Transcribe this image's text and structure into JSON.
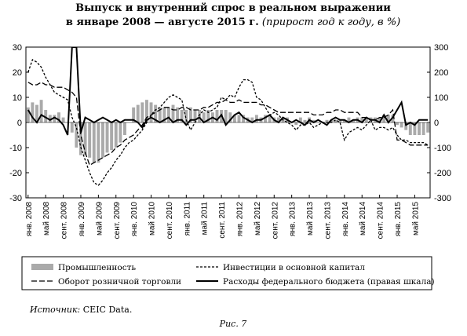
{
  "chart_data": {
    "type": "bar-line",
    "title": "Выпуск и внутренний спрос в реальном выражении",
    "subtitle": "в январе 2008 — августе 2015 г.",
    "subtitle_note": "(прирост год к году, в %)",
    "source_label": "Источник:",
    "source": "CEIC Data.",
    "figure": "Рис. 7",
    "categories": [
      "янв. 2008",
      null,
      null,
      null,
      "май 2008",
      null,
      null,
      null,
      "сент. 2008",
      null,
      null,
      null,
      "янв. 2009",
      null,
      null,
      null,
      "май 2009",
      null,
      null,
      null,
      "сент. 2009",
      null,
      null,
      null,
      "янв. 2010",
      null,
      null,
      null,
      "май 2010",
      null,
      null,
      null,
      "сент. 2010",
      null,
      null,
      null,
      "янв. 2011",
      null,
      null,
      null,
      "май 2011",
      null,
      null,
      null,
      "сент. 2011",
      null,
      null,
      null,
      "янв. 2012",
      null,
      null,
      null,
      "май 2012",
      null,
      null,
      null,
      "сент. 2012",
      null,
      null,
      null,
      "янв. 2013",
      null,
      null,
      null,
      "май 2013",
      null,
      null,
      null,
      "сент. 2013",
      null,
      null,
      null,
      "янв. 2014",
      null,
      null,
      null,
      "май 2014",
      null,
      null,
      null,
      "сент. 2014",
      null,
      null,
      null,
      "янв. 2015",
      null,
      null,
      null,
      "май 2015",
      null,
      null,
      null
    ],
    "ylim": [
      -30,
      30
    ],
    "yticks": [
      -30,
      -20,
      -10,
      0,
      10,
      20,
      30
    ],
    "y2lim": [
      -300,
      300
    ],
    "y2ticks": [
      -300,
      -200,
      -100,
      0,
      100,
      200,
      300
    ],
    "series": [
      {
        "name": "Промышленность",
        "kind": "bar",
        "color": "#aaaaaa",
        "values": [
          6,
          8,
          7,
          9,
          5,
          3,
          3,
          4,
          2,
          0,
          -4,
          -10,
          -13,
          -13,
          -14,
          -16,
          -16,
          -14,
          -12,
          -11,
          -10,
          -8,
          -5,
          0,
          6,
          7,
          8,
          9,
          8,
          7,
          6,
          6,
          6,
          7,
          6,
          5,
          5,
          6,
          5,
          5,
          4,
          5,
          4,
          5,
          5,
          5,
          4,
          3,
          3,
          3,
          2,
          2,
          3,
          2,
          3,
          3,
          2,
          2,
          2,
          2,
          0,
          -1,
          2,
          1,
          2,
          1,
          0,
          0,
          1,
          1,
          1,
          1,
          1,
          2,
          1,
          2,
          2,
          2,
          2,
          2,
          2,
          3,
          3,
          3,
          -1,
          -2,
          -3,
          -5,
          -5,
          -5,
          -5,
          -4
        ]
      },
      {
        "name": "Инвестиции в основной капитал",
        "kind": "line",
        "style": "dashed",
        "color": "#000000",
        "values": [
          20,
          25,
          24,
          22,
          18,
          15,
          12,
          11,
          10,
          9,
          2,
          -2,
          -10,
          -15,
          -20,
          -24,
          -25,
          -23,
          -20,
          -18,
          -15,
          -13,
          -10,
          -8,
          -7,
          -5,
          -3,
          0,
          3,
          5,
          6,
          8,
          10,
          11,
          10,
          9,
          1,
          -3,
          0,
          3,
          5,
          4,
          5,
          6,
          10,
          9,
          11,
          10,
          14,
          17,
          17,
          16,
          10,
          9,
          6,
          3,
          4,
          3,
          1,
          0,
          -1,
          -3,
          -1,
          -1,
          0,
          -2,
          -1,
          0,
          0,
          0,
          1,
          0,
          -7,
          -4,
          -3,
          -2,
          -3,
          -1,
          1,
          -3,
          -2,
          -2,
          -3,
          -2,
          -5,
          -7,
          -7,
          -8,
          -8,
          -8,
          -8,
          -9
        ]
      },
      {
        "name": "Оборот розничной торговли",
        "kind": "line",
        "style": "long-dashed",
        "color": "#000000",
        "values": [
          16,
          15,
          15,
          16,
          15,
          15,
          14,
          14,
          14,
          13,
          12,
          10,
          -5,
          -12,
          -17,
          -16,
          -15,
          -14,
          -13,
          -12,
          -10,
          -9,
          -7,
          -6,
          -5,
          -3,
          -1,
          2,
          3,
          4,
          5,
          6,
          6,
          5,
          5,
          6,
          6,
          5,
          5,
          5,
          6,
          6,
          7,
          8,
          8,
          9,
          8,
          8,
          9,
          8,
          8,
          8,
          8,
          7,
          7,
          6,
          5,
          4,
          4,
          4,
          4,
          4,
          4,
          4,
          4,
          3,
          3,
          3,
          4,
          4,
          5,
          5,
          4,
          4,
          4,
          4,
          2,
          2,
          1,
          1,
          2,
          2,
          3,
          5,
          -7,
          -7,
          -8,
          -9,
          -9,
          -9,
          -9,
          -9
        ]
      },
      {
        "name": "Расходы федерального бюджета (правая шкала)",
        "kind": "line",
        "style": "solid",
        "axis": "y2",
        "color": "#000000",
        "values": [
          50,
          20,
          0,
          30,
          20,
          10,
          20,
          10,
          -10,
          -50,
          300,
          300,
          -40,
          20,
          10,
          0,
          10,
          20,
          10,
          0,
          10,
          0,
          10,
          10,
          10,
          0,
          -20,
          10,
          20,
          10,
          0,
          10,
          20,
          0,
          10,
          10,
          -10,
          10,
          10,
          20,
          0,
          10,
          20,
          10,
          30,
          -10,
          10,
          30,
          40,
          20,
          10,
          0,
          10,
          10,
          20,
          30,
          10,
          0,
          20,
          10,
          0,
          10,
          0,
          -10,
          10,
          0,
          10,
          0,
          -10,
          10,
          20,
          10,
          10,
          0,
          10,
          10,
          0,
          20,
          10,
          10,
          0,
          30,
          0,
          20,
          50,
          80,
          -10,
          0,
          -10,
          10,
          10,
          10
        ]
      }
    ]
  }
}
